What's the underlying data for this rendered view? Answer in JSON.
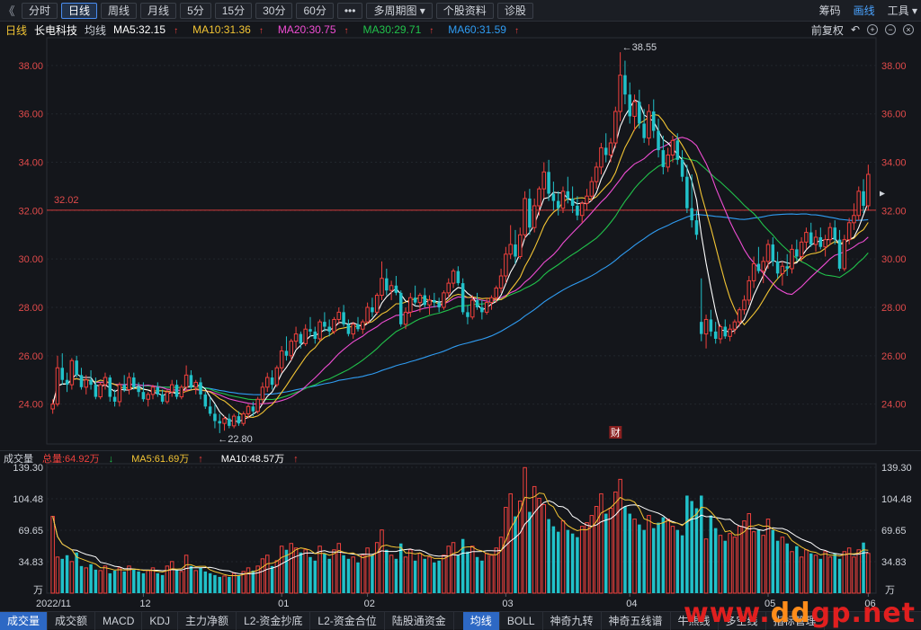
{
  "toolbar": {
    "back": "《",
    "buttons": [
      "分时",
      "日线",
      "周线",
      "月线",
      "5分",
      "15分",
      "30分",
      "60分",
      "•••",
      "多周期图 ▾",
      "个股资料",
      "诊股"
    ],
    "active_index": 1,
    "right": [
      "筹码",
      "画线",
      "工具 ▾"
    ]
  },
  "legend": {
    "kline_type": "日线",
    "stock_name": "长电科技",
    "avg": "均线",
    "ma5": "MA5:32.15",
    "ma10": "MA10:31.36",
    "ma20": "MA20:30.75",
    "ma30": "MA30:29.71",
    "ma60": "MA60:31.59",
    "fuquan": "前复权"
  },
  "colors": {
    "up": "#f0413d",
    "down": "#21c1c9",
    "ma5": "#ffffff",
    "ma10": "#f3c534",
    "ma20": "#ef4dd3",
    "ma30": "#21c24b",
    "ma60": "#2f9cf2"
  },
  "price_axis": {
    "ticks": [
      "38.00",
      "36.00",
      "34.00",
      "32.00",
      "30.00",
      "28.00",
      "26.00",
      "24.00"
    ],
    "ref_line_label": "32.02",
    "high_label": "38.55",
    "low_label": "22.80",
    "fin_marker": "财"
  },
  "volume": {
    "title": "成交量",
    "total": "总量:64.92万",
    "ma5": "MA5:61.69万",
    "ma10": "MA10:48.57万",
    "ticks": [
      "139.30",
      "104.48",
      "69.65",
      "34.83"
    ],
    "unit": "万"
  },
  "x_axis": {
    "labels": [
      "2022/11",
      "12",
      "01",
      "02",
      "03",
      "04",
      "05",
      "06"
    ]
  },
  "bottom_tabs": [
    "成交量",
    "成交额",
    "MACD",
    "KDJ",
    "主力净额",
    "L2-资金抄底",
    "L2-资金合位",
    "陆股通资金",
    "",
    "均线",
    "BOLL",
    "神奇九转",
    "神奇五线谱",
    "牛熊线",
    "多空线",
    "指标管理"
  ],
  "bottom_active": [
    0,
    9
  ],
  "watermark": {
    "prefix": "www.",
    "mid": "dd",
    "suffix": "gp.net"
  },
  "chart_data": {
    "type": "candlestick",
    "title": "长电科技 日线",
    "ylim": [
      22.5,
      39.0
    ],
    "volume_ylim": [
      0,
      139.3
    ],
    "months": [
      "2022/11",
      "12",
      "01",
      "02",
      "03",
      "04",
      "05",
      "06"
    ],
    "month_start_index": [
      0,
      19,
      48,
      66,
      95,
      121,
      150,
      171
    ],
    "ohlc": [
      [
        23.8,
        24.2,
        23.6,
        24.0
      ],
      [
        24.0,
        26.0,
        23.9,
        25.5
      ],
      [
        25.5,
        26.1,
        24.8,
        25.0
      ],
      [
        25.0,
        25.3,
        24.5,
        24.8
      ],
      [
        24.8,
        25.9,
        24.6,
        25.8
      ],
      [
        25.8,
        26.0,
        25.1,
        25.2
      ],
      [
        25.2,
        25.5,
        24.6,
        24.7
      ],
      [
        24.7,
        25.2,
        24.4,
        25.0
      ],
      [
        25.0,
        25.4,
        24.6,
        24.8
      ],
      [
        24.8,
        25.1,
        24.2,
        24.3
      ],
      [
        24.3,
        24.9,
        24.2,
        24.8
      ],
      [
        24.8,
        25.3,
        24.6,
        25.1
      ],
      [
        25.1,
        25.2,
        24.1,
        24.3
      ],
      [
        24.3,
        24.6,
        23.9,
        24.1
      ],
      [
        24.1,
        24.9,
        23.9,
        24.8
      ],
      [
        24.8,
        25.2,
        24.5,
        24.6
      ],
      [
        24.6,
        25.3,
        24.4,
        25.1
      ],
      [
        25.1,
        25.3,
        24.6,
        24.7
      ],
      [
        24.7,
        24.9,
        24.3,
        24.5
      ],
      [
        24.5,
        24.9,
        24.1,
        24.2
      ],
      [
        24.2,
        24.5,
        23.9,
        24.4
      ],
      [
        24.4,
        24.8,
        24.2,
        24.7
      ],
      [
        24.7,
        24.9,
        24.3,
        24.4
      ],
      [
        24.4,
        24.6,
        24.0,
        24.1
      ],
      [
        24.1,
        24.6,
        24.0,
        24.5
      ],
      [
        24.5,
        25.0,
        24.3,
        24.8
      ],
      [
        24.8,
        25.0,
        24.2,
        24.3
      ],
      [
        24.3,
        24.8,
        24.2,
        24.7
      ],
      [
        24.7,
        25.6,
        24.5,
        25.2
      ],
      [
        25.2,
        25.4,
        24.6,
        24.7
      ],
      [
        24.7,
        25.0,
        24.4,
        24.9
      ],
      [
        24.9,
        25.1,
        24.2,
        24.4
      ],
      [
        24.4,
        24.5,
        23.8,
        23.9
      ],
      [
        23.9,
        24.3,
        23.5,
        23.6
      ],
      [
        23.6,
        24.0,
        23.0,
        23.3
      ],
      [
        23.3,
        23.6,
        22.8,
        23.2
      ],
      [
        23.2,
        23.5,
        22.9,
        23.4
      ],
      [
        23.4,
        23.6,
        23.0,
        23.1
      ],
      [
        23.1,
        23.6,
        23.0,
        23.5
      ],
      [
        23.5,
        23.7,
        23.1,
        23.2
      ],
      [
        23.2,
        23.7,
        23.1,
        23.6
      ],
      [
        23.6,
        24.0,
        23.4,
        23.9
      ],
      [
        23.9,
        24.1,
        23.5,
        23.7
      ],
      [
        23.7,
        24.3,
        23.6,
        24.2
      ],
      [
        24.2,
        24.9,
        24.0,
        24.7
      ],
      [
        24.7,
        25.3,
        24.5,
        25.1
      ],
      [
        25.1,
        25.4,
        24.6,
        24.8
      ],
      [
        24.8,
        25.6,
        24.7,
        25.5
      ],
      [
        25.5,
        26.4,
        25.3,
        26.2
      ],
      [
        26.2,
        26.8,
        25.8,
        26.0
      ],
      [
        26.0,
        26.7,
        25.8,
        26.6
      ],
      [
        26.6,
        27.2,
        26.3,
        26.9
      ],
      [
        26.9,
        27.0,
        26.3,
        26.5
      ],
      [
        26.5,
        27.3,
        26.4,
        27.1
      ],
      [
        27.1,
        27.6,
        26.8,
        27.0
      ],
      [
        27.0,
        27.2,
        26.5,
        26.7
      ],
      [
        26.7,
        27.5,
        26.6,
        27.4
      ],
      [
        27.4,
        27.8,
        27.0,
        27.2
      ],
      [
        27.2,
        27.5,
        26.8,
        27.0
      ],
      [
        27.0,
        27.6,
        26.9,
        27.5
      ],
      [
        27.5,
        28.0,
        27.3,
        27.8
      ],
      [
        27.8,
        28.1,
        27.2,
        27.3
      ],
      [
        27.3,
        27.5,
        26.8,
        26.9
      ],
      [
        26.9,
        27.4,
        26.7,
        27.3
      ],
      [
        27.3,
        27.6,
        27.0,
        27.1
      ],
      [
        27.1,
        27.5,
        26.9,
        27.4
      ],
      [
        27.4,
        28.2,
        27.3,
        28.0
      ],
      [
        28.0,
        28.4,
        27.6,
        27.8
      ],
      [
        27.8,
        28.6,
        27.7,
        28.5
      ],
      [
        28.5,
        29.9,
        28.3,
        29.2
      ],
      [
        29.2,
        29.6,
        28.5,
        28.7
      ],
      [
        28.7,
        29.1,
        28.3,
        28.9
      ],
      [
        28.9,
        29.3,
        28.5,
        28.6
      ],
      [
        28.6,
        28.7,
        27.2,
        27.3
      ],
      [
        27.3,
        28.0,
        27.1,
        27.8
      ],
      [
        27.8,
        28.6,
        27.6,
        28.4
      ],
      [
        28.4,
        28.9,
        28.1,
        28.2
      ],
      [
        28.2,
        28.6,
        27.8,
        28.5
      ],
      [
        28.5,
        28.8,
        28.0,
        28.1
      ],
      [
        28.1,
        28.5,
        27.7,
        28.3
      ],
      [
        28.3,
        28.6,
        28.0,
        28.2
      ],
      [
        28.2,
        28.4,
        27.8,
        28.0
      ],
      [
        28.0,
        28.7,
        27.9,
        28.6
      ],
      [
        28.6,
        29.2,
        28.4,
        29.0
      ],
      [
        29.0,
        29.6,
        28.8,
        29.5
      ],
      [
        29.5,
        29.7,
        28.9,
        29.0
      ],
      [
        29.0,
        29.2,
        27.7,
        27.8
      ],
      [
        27.8,
        28.1,
        27.3,
        27.6
      ],
      [
        27.6,
        28.5,
        27.5,
        28.3
      ],
      [
        28.3,
        28.6,
        27.9,
        28.0
      ],
      [
        28.0,
        28.3,
        27.5,
        27.8
      ],
      [
        27.8,
        28.4,
        27.7,
        28.2
      ],
      [
        28.2,
        28.5,
        27.9,
        28.4
      ],
      [
        28.4,
        28.9,
        28.2,
        28.8
      ],
      [
        28.8,
        29.6,
        28.6,
        29.3
      ],
      [
        29.3,
        30.5,
        29.0,
        30.2
      ],
      [
        30.2,
        31.4,
        30.0,
        30.6
      ],
      [
        30.6,
        31.2,
        29.8,
        30.1
      ],
      [
        30.1,
        31.3,
        30.0,
        31.0
      ],
      [
        31.0,
        32.8,
        30.8,
        32.5
      ],
      [
        32.5,
        32.9,
        31.0,
        31.3
      ],
      [
        31.3,
        32.5,
        31.1,
        32.2
      ],
      [
        32.2,
        33.0,
        31.8,
        32.9
      ],
      [
        32.9,
        34.0,
        32.5,
        33.6
      ],
      [
        33.6,
        34.1,
        32.4,
        32.7
      ],
      [
        32.7,
        33.2,
        32.0,
        32.4
      ],
      [
        32.4,
        32.8,
        31.8,
        32.1
      ],
      [
        32.1,
        33.0,
        31.9,
        32.8
      ],
      [
        32.8,
        33.4,
        32.3,
        32.5
      ],
      [
        32.5,
        33.0,
        31.9,
        32.2
      ],
      [
        32.2,
        32.6,
        31.6,
        31.8
      ],
      [
        31.8,
        32.4,
        31.5,
        32.3
      ],
      [
        32.3,
        32.9,
        32.0,
        32.6
      ],
      [
        32.6,
        33.4,
        32.4,
        33.2
      ],
      [
        33.2,
        34.0,
        32.9,
        33.8
      ],
      [
        33.8,
        34.8,
        33.5,
        34.6
      ],
      [
        34.6,
        35.2,
        34.0,
        34.3
      ],
      [
        34.3,
        35.0,
        34.0,
        34.8
      ],
      [
        34.8,
        36.3,
        34.6,
        36.1
      ],
      [
        36.1,
        38.55,
        35.7,
        37.6
      ],
      [
        37.6,
        38.2,
        36.4,
        36.8
      ],
      [
        36.8,
        37.3,
        35.6,
        35.9
      ],
      [
        35.9,
        36.8,
        35.3,
        36.5
      ],
      [
        36.5,
        37.0,
        35.4,
        35.6
      ],
      [
        35.6,
        36.2,
        34.8,
        35.0
      ],
      [
        35.0,
        36.4,
        34.7,
        36.1
      ],
      [
        36.1,
        36.6,
        35.0,
        35.3
      ],
      [
        35.3,
        35.8,
        34.2,
        34.5
      ],
      [
        34.5,
        35.1,
        33.5,
        33.8
      ],
      [
        33.8,
        34.6,
        33.6,
        34.3
      ],
      [
        34.3,
        35.1,
        34.0,
        34.9
      ],
      [
        34.9,
        35.2,
        33.9,
        34.1
      ],
      [
        34.1,
        34.5,
        33.2,
        33.4
      ],
      [
        33.4,
        33.9,
        31.9,
        32.1
      ],
      [
        32.1,
        33.5,
        31.3,
        31.6
      ],
      [
        31.6,
        32.0,
        30.8,
        31.0
      ],
      [
        27.4,
        29.2,
        26.6,
        26.9
      ],
      [
        26.9,
        27.7,
        26.3,
        27.5
      ],
      [
        27.5,
        27.9,
        26.8,
        27.0
      ],
      [
        27.0,
        27.4,
        26.5,
        26.7
      ],
      [
        26.7,
        27.3,
        26.5,
        27.2
      ],
      [
        27.2,
        27.5,
        26.7,
        26.8
      ],
      [
        26.8,
        27.3,
        26.6,
        27.1
      ],
      [
        27.1,
        27.5,
        26.9,
        27.4
      ],
      [
        27.4,
        28.0,
        27.2,
        27.9
      ],
      [
        27.9,
        28.5,
        27.7,
        28.3
      ],
      [
        28.3,
        29.3,
        28.1,
        29.1
      ],
      [
        29.1,
        30.1,
        28.8,
        29.8
      ],
      [
        29.8,
        30.5,
        29.4,
        29.5
      ],
      [
        29.5,
        30.1,
        29.0,
        29.9
      ],
      [
        29.9,
        30.8,
        29.6,
        30.6
      ],
      [
        30.6,
        30.9,
        29.7,
        29.9
      ],
      [
        29.9,
        30.3,
        29.2,
        29.4
      ],
      [
        29.4,
        29.9,
        28.9,
        29.7
      ],
      [
        29.7,
        30.2,
        29.3,
        29.6
      ],
      [
        29.6,
        30.6,
        29.4,
        30.4
      ],
      [
        30.4,
        30.8,
        29.9,
        30.1
      ],
      [
        30.1,
        30.9,
        29.9,
        30.7
      ],
      [
        30.7,
        31.3,
        30.4,
        31.1
      ],
      [
        31.1,
        31.5,
        30.5,
        30.6
      ],
      [
        30.6,
        31.2,
        30.3,
        30.9
      ],
      [
        30.9,
        31.3,
        30.4,
        30.5
      ],
      [
        30.5,
        31.0,
        30.1,
        30.8
      ],
      [
        30.8,
        31.5,
        30.6,
        31.3
      ],
      [
        31.3,
        31.6,
        30.6,
        30.8
      ],
      [
        30.8,
        31.2,
        29.5,
        29.6
      ],
      [
        29.6,
        31.0,
        29.5,
        30.8
      ],
      [
        30.8,
        31.7,
        30.6,
        31.5
      ],
      [
        31.5,
        32.3,
        31.2,
        31.8
      ],
      [
        31.8,
        33.0,
        31.6,
        32.8
      ],
      [
        32.8,
        33.3,
        31.9,
        32.2
      ],
      [
        32.2,
        33.9,
        32.0,
        33.5
      ]
    ],
    "volume": [
      85,
      40,
      38,
      42,
      35,
      45,
      30,
      28,
      32,
      26,
      25,
      30,
      22,
      25,
      28,
      24,
      30,
      26,
      24,
      22,
      25,
      28,
      22,
      20,
      30,
      35,
      26,
      24,
      42,
      30,
      25,
      28,
      24,
      22,
      20,
      18,
      19,
      18,
      22,
      20,
      24,
      28,
      25,
      30,
      38,
      42,
      30,
      36,
      52,
      48,
      55,
      50,
      45,
      48,
      40,
      36,
      52,
      44,
      38,
      48,
      55,
      42,
      38,
      40,
      34,
      42,
      50,
      42,
      56,
      70,
      48,
      42,
      38,
      55,
      40,
      48,
      36,
      44,
      38,
      40,
      34,
      36,
      42,
      52,
      56,
      42,
      60,
      46,
      52,
      40,
      36,
      44,
      42,
      50,
      62,
      95,
      110,
      85,
      102,
      139,
      90,
      118,
      105,
      98,
      82,
      74,
      68,
      80,
      70,
      66,
      62,
      74,
      78,
      86,
      96,
      110,
      88,
      94,
      112,
      126,
      96,
      88,
      82,
      76,
      70,
      86,
      72,
      78,
      84,
      82,
      74,
      70,
      64,
      108,
      102,
      94,
      108,
      60,
      86,
      72,
      64,
      58,
      66,
      62,
      74,
      80,
      88,
      68,
      70,
      64,
      82,
      70,
      58,
      62,
      55,
      46,
      52,
      40,
      48,
      44,
      42,
      38,
      46,
      40,
      44,
      38,
      46,
      50,
      40,
      48,
      56,
      44,
      62,
      70,
      68
    ]
  }
}
